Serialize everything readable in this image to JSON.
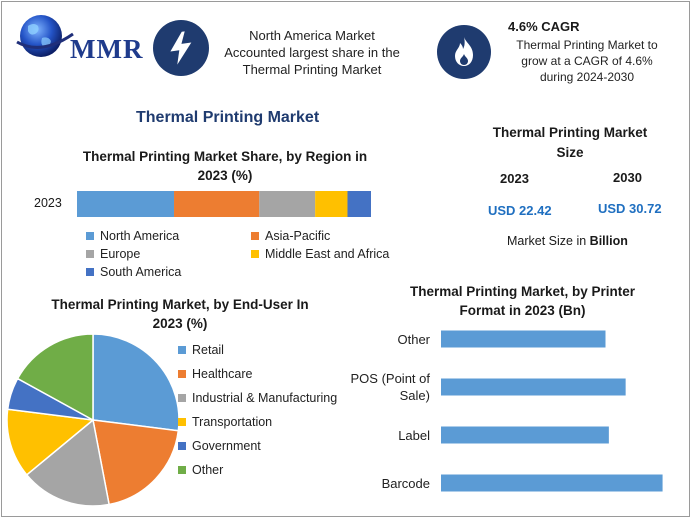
{
  "header": {
    "logo_text": "MMR",
    "info1": {
      "line1": "North America Market",
      "line2": "Accounted largest share in the",
      "line3": "Thermal Printing Market",
      "icon": "lightning-icon"
    },
    "info2": {
      "headline": "4.6% CAGR",
      "line1": "Thermal Printing Market to",
      "line2": "grow at a CAGR of 4.6%",
      "line3": "during 2024-2030",
      "icon": "flame-icon"
    }
  },
  "main_title": "Thermal Printing Market",
  "market_size": {
    "title_line1": "Thermal Printing Market",
    "title_line2": "Size",
    "year_a": "2023",
    "year_b": "2030",
    "value_a": "USD 22.42",
    "value_b": "USD 30.72",
    "note_prefix": "Market Size in ",
    "note_unit": "Billion"
  },
  "colors": {
    "blue": "#5b9bd5",
    "orange": "#ed7d31",
    "gray": "#a5a5a5",
    "yellow": "#ffc000",
    "darkblue": "#4472c4",
    "green": "#70ad47"
  },
  "chart_data": [
    {
      "type": "bar",
      "orientation": "horizontal-stacked",
      "title_line1": "Thermal Printing Market Share, by Region in",
      "title_line2": "2023 (%)",
      "categories": [
        "2023"
      ],
      "series": [
        {
          "name": "North America",
          "values": [
            33
          ],
          "color": "#5b9bd5"
        },
        {
          "name": "Asia-Pacific",
          "values": [
            29
          ],
          "color": "#ed7d31"
        },
        {
          "name": "Europe",
          "values": [
            19
          ],
          "color": "#a5a5a5"
        },
        {
          "name": "Middle East and Africa",
          "values": [
            11
          ],
          "color": "#ffc000"
        },
        {
          "name": "South America",
          "values": [
            8
          ],
          "color": "#4472c4"
        }
      ],
      "legend": "bottom"
    },
    {
      "type": "pie",
      "title_line1": "Thermal Printing Market, by End-User In",
      "title_line2": "2023 (%)",
      "slices": [
        {
          "name": "Retail",
          "value": 27,
          "color": "#5b9bd5"
        },
        {
          "name": "Healthcare",
          "value": 20,
          "color": "#ed7d31"
        },
        {
          "name": "Industrial & Manufacturing",
          "value": 17,
          "color": "#a5a5a5"
        },
        {
          "name": "Transportation",
          "value": 13,
          "color": "#ffc000"
        },
        {
          "name": "Government",
          "value": 6,
          "color": "#4472c4"
        },
        {
          "name": "Other",
          "value": 17,
          "color": "#70ad47"
        }
      ],
      "legend": "right"
    },
    {
      "type": "bar",
      "orientation": "horizontal",
      "title_line1": "Thermal Printing Market, by Printer",
      "title_line2": "Format in 2023 (Bn)",
      "categories": [
        "Other",
        "POS (Point of Sale)",
        "Label",
        "Barcode"
      ],
      "category_lines": [
        [
          "Other"
        ],
        [
          "POS (Point of",
          "Sale)"
        ],
        [
          "Label"
        ],
        [
          "Barcode"
        ]
      ],
      "values": [
        4.9,
        5.5,
        5.0,
        6.6
      ],
      "xlim": [
        0,
        7
      ],
      "color": "#5b9bd5",
      "grid": false
    }
  ]
}
